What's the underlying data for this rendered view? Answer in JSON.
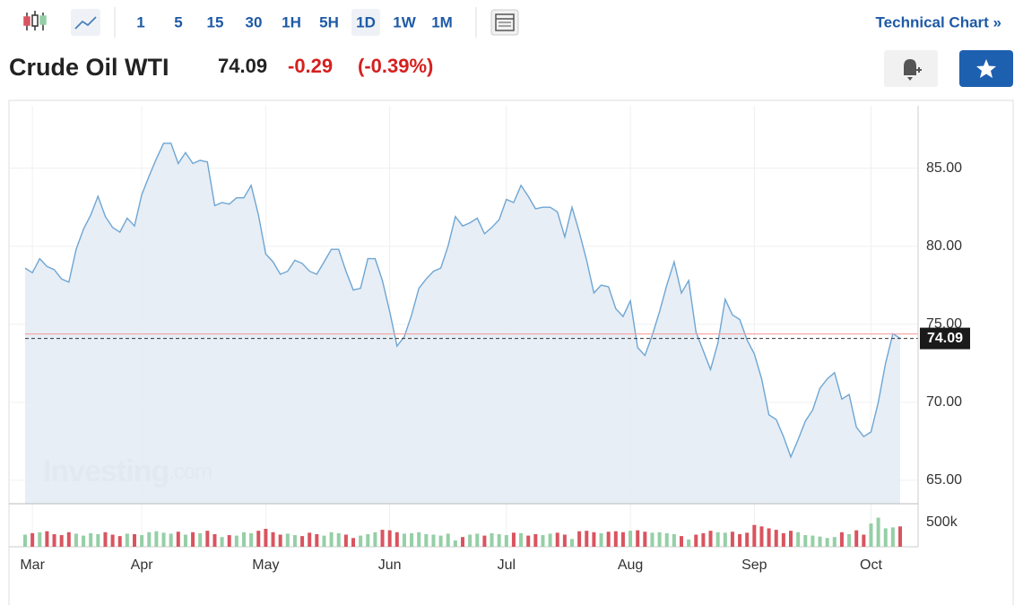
{
  "toolbar": {
    "intervals": [
      "1",
      "5",
      "15",
      "30",
      "1H",
      "5H",
      "1D",
      "1W",
      "1M"
    ],
    "active_index": 6,
    "technical_chart": "Technical Chart »"
  },
  "header": {
    "name": "Crude Oil WTI",
    "price": "74.09",
    "change": "-0.29",
    "change_percent": "(-0.39%)"
  },
  "chart_data": {
    "type": "line",
    "categories": [
      null,
      "Mar",
      null,
      null,
      null,
      null,
      null,
      null,
      null,
      null,
      null,
      null,
      null,
      null,
      null,
      null,
      "Apr",
      null,
      null,
      null,
      null,
      null,
      null,
      null,
      null,
      null,
      null,
      null,
      null,
      null,
      null,
      null,
      null,
      "May",
      null,
      null,
      null,
      null,
      null,
      null,
      null,
      null,
      null,
      null,
      null,
      null,
      null,
      null,
      null,
      null,
      "Jun",
      null,
      null,
      null,
      null,
      null,
      null,
      null,
      null,
      null,
      null,
      null,
      null,
      null,
      null,
      null,
      "Jul",
      null,
      null,
      null,
      null,
      null,
      null,
      null,
      null,
      null,
      null,
      null,
      null,
      null,
      null,
      null,
      null,
      "Aug",
      null,
      null,
      null,
      null,
      null,
      null,
      null,
      null,
      null,
      null,
      null,
      null,
      null,
      null,
      null,
      null,
      "Sep",
      null,
      null,
      null,
      null,
      null,
      null,
      null,
      null,
      null,
      null,
      null,
      null,
      null,
      null,
      null,
      "Oct",
      null,
      null,
      null,
      null
    ],
    "values": [
      78.6,
      78.3,
      79.2,
      78.7,
      78.5,
      77.9,
      77.7,
      79.8,
      81.1,
      82.0,
      83.2,
      81.9,
      81.2,
      80.9,
      81.8,
      81.3,
      83.3,
      84.5,
      85.6,
      86.6,
      86.6,
      85.3,
      86.0,
      85.3,
      85.5,
      85.4,
      82.6,
      82.8,
      82.7,
      83.1,
      83.1,
      83.9,
      82.0,
      79.5,
      79.0,
      78.2,
      78.4,
      79.1,
      78.9,
      78.4,
      78.2,
      79.0,
      79.8,
      79.8,
      78.4,
      77.2,
      77.3,
      79.2,
      79.2,
      77.8,
      75.8,
      73.6,
      74.2,
      75.6,
      77.3,
      77.9,
      78.4,
      78.6,
      80.0,
      81.9,
      81.3,
      81.5,
      81.8,
      80.8,
      81.2,
      81.7,
      83.0,
      82.8,
      83.9,
      83.2,
      82.4,
      82.5,
      82.5,
      82.2,
      80.6,
      82.5,
      80.9,
      79.1,
      77.0,
      77.5,
      77.4,
      76.0,
      75.5,
      76.5,
      73.5,
      73.0,
      74.3,
      75.8,
      77.5,
      79.0,
      77.0,
      77.8,
      74.5,
      73.3,
      72.1,
      73.8,
      76.6,
      75.6,
      75.3,
      74.0,
      73.1,
      71.5,
      69.2,
      68.9,
      67.8,
      66.5,
      67.6,
      68.8,
      69.5,
      70.9,
      71.5,
      71.9,
      70.2,
      70.5,
      68.4,
      67.8,
      68.1,
      70.0,
      72.5,
      74.4,
      74.09
    ],
    "color": "#6ea6d4",
    "fill": "#e4ecf4",
    "ylim": [
      63.5,
      89.0
    ],
    "yticks": [
      {
        "value": 65,
        "label": "65.00"
      },
      {
        "value": 70,
        "label": "70.00"
      },
      {
        "value": 75,
        "label": "75.00"
      },
      {
        "value": 80,
        "label": "80.00"
      },
      {
        "value": 85,
        "label": "85.00"
      }
    ],
    "grid": true,
    "last_price": 74.09,
    "previous_close": 74.38,
    "volume": {
      "values": [
        250000,
        280000,
        300000,
        320000,
        260000,
        240000,
        300000,
        270000,
        230000,
        280000,
        260000,
        300000,
        250000,
        220000,
        270000,
        260000,
        240000,
        300000,
        320000,
        290000,
        270000,
        310000,
        250000,
        300000,
        280000,
        330000,
        260000,
        200000,
        240000,
        230000,
        300000,
        280000,
        330000,
        370000,
        300000,
        250000,
        270000,
        240000,
        220000,
        290000,
        260000,
        230000,
        300000,
        280000,
        250000,
        180000,
        230000,
        260000,
        300000,
        350000,
        340000,
        300000,
        270000,
        280000,
        300000,
        260000,
        250000,
        230000,
        270000,
        130000,
        200000,
        250000,
        270000,
        230000,
        280000,
        260000,
        240000,
        290000,
        280000,
        230000,
        260000,
        240000,
        270000,
        290000,
        250000,
        160000,
        320000,
        330000,
        300000,
        280000,
        310000,
        320000,
        300000,
        330000,
        340000,
        310000,
        290000,
        300000,
        280000,
        260000,
        220000,
        150000,
        250000,
        280000,
        330000,
        300000,
        290000,
        310000,
        260000,
        290000,
        450000,
        420000,
        380000,
        350000,
        280000,
        330000,
        300000,
        240000,
        230000,
        210000,
        180000,
        200000,
        300000,
        260000,
        340000,
        250000,
        480000,
        600000,
        380000,
        400000,
        420000
      ],
      "ylim": [
        0,
        870000
      ],
      "yticks": [
        {
          "value": 500000,
          "label": "500k"
        }
      ],
      "up_color": "#95cfa6",
      "down_color": "#d9545f"
    },
    "watermark": {
      "brand": "Investing",
      "suffix": ".com"
    }
  }
}
